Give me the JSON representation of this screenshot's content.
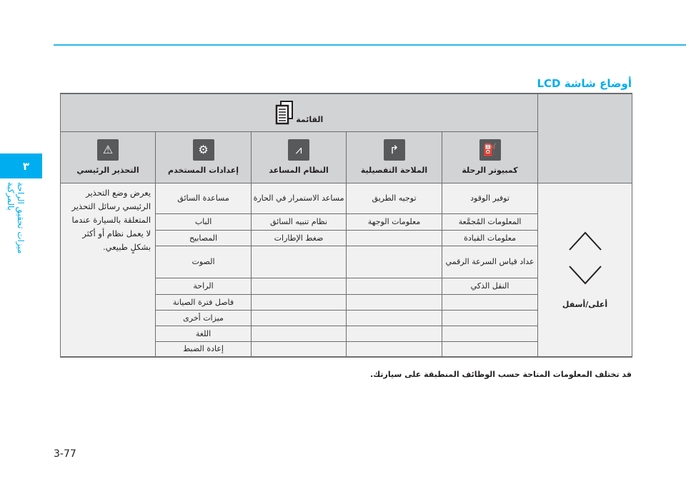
{
  "chapter": {
    "number": "٣",
    "title": "ميزات تحقيق الراحة بالمركبة"
  },
  "section_title": "أوضاع شاشة LCD",
  "menu": {
    "label": "القائمة",
    "icon": "menu-pages-icon"
  },
  "modes": [
    {
      "label": "كمبيوتر الرحلة",
      "icon": "trip-computer-icon",
      "items": [
        "توفير الوقود",
        "المعلومات المُجمَّعة",
        "معلومات القيادة",
        "عداد قياس السرعة الرقمي",
        "النقل الذكي",
        "",
        "",
        "",
        ""
      ]
    },
    {
      "label": "الملاحة التفصيلية",
      "icon": "turn-arrow-icon",
      "items": [
        "توجيه الطريق",
        "معلومات الوجهة",
        "",
        "",
        "",
        "",
        "",
        "",
        ""
      ]
    },
    {
      "label": "النظام المساعد",
      "icon": "lane-icon",
      "items": [
        "مساعد الاستمرار في الحارة",
        "نظام تنبيه السائق",
        "ضغط الإطارات",
        "",
        "",
        "",
        "",
        "",
        ""
      ]
    },
    {
      "label": "إعدادات المستخدم",
      "icon": "gear-icon",
      "items": [
        "مساعدة السائق",
        "الباب",
        "المصابيح",
        "الصوت",
        "الراحة",
        "فاصل فترة الصيانة",
        "ميزات أخرى",
        "اللغة",
        "إعادة الضبط"
      ]
    },
    {
      "label": "التحذير الرئيسي",
      "icon": "warning-triangle-icon",
      "description": "يعرض وضع التحذير الرئيسي رسائل التحذير المتعلقة بالسيارة عندما لا يعمل نظام أو أكثر بشكلٍ طبيعي."
    }
  ],
  "nav": {
    "label": "أعلى/أسفل"
  },
  "note": "قد تختلف المعلومات المتاحة حسب الوظائف المنطبقة على سيارتك.",
  "page_number": "3-77"
}
